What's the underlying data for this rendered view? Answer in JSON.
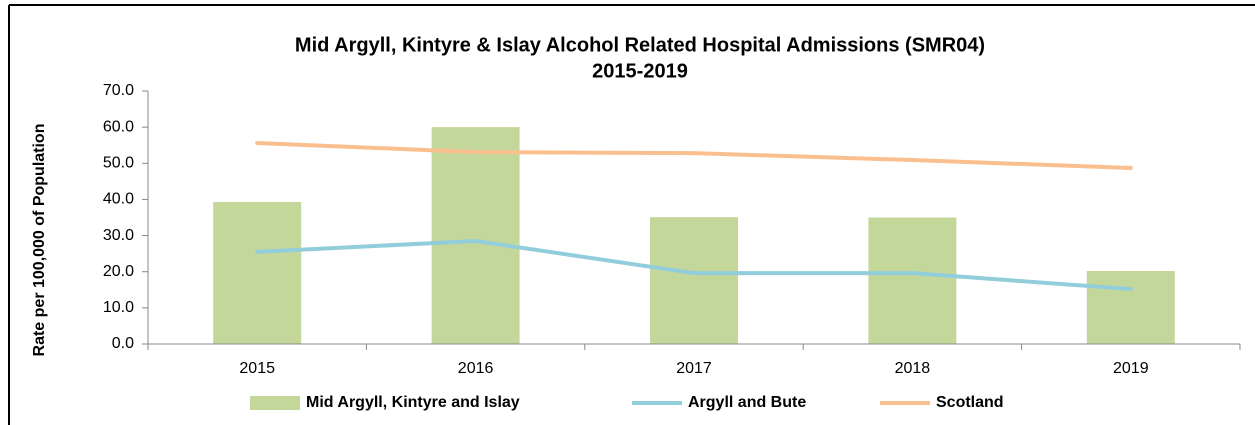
{
  "chart_data": {
    "type": "combo",
    "title": [
      "Mid Argyll, Kintyre & Islay Alcohol Related Hospital Admissions (SMR04)",
      "2015-2019"
    ],
    "y_label": "Rate per 100,000 of Population",
    "categories": [
      "2015",
      "2016",
      "2017",
      "2018",
      "2019"
    ],
    "series": [
      {
        "name": "Mid Argyll, Kintyre and Islay",
        "type": "bar",
        "color": "#c4d79b",
        "values": [
          39.3,
          60.0,
          35.1,
          35.0,
          20.2
        ]
      },
      {
        "name": "Argyll and Bute",
        "type": "line",
        "color": "#92cddc",
        "values": [
          25.5,
          28.5,
          19.6,
          19.6,
          15.2
        ]
      },
      {
        "name": "Scotland",
        "type": "line",
        "color": "#fabf8f",
        "values": [
          55.6,
          53.1,
          52.8,
          50.9,
          48.7
        ]
      }
    ],
    "ylim": [
      0,
      70
    ],
    "yticks": [
      {
        "value": 0,
        "label": "0.0"
      },
      {
        "value": 10,
        "label": "10.0"
      },
      {
        "value": 20,
        "label": "20.0"
      },
      {
        "value": 30,
        "label": "30.0"
      },
      {
        "value": 40,
        "label": "40.0"
      },
      {
        "value": 50,
        "label": "50.0"
      },
      {
        "value": 60,
        "label": "60.0"
      },
      {
        "value": 70,
        "label": "70.0"
      }
    ],
    "grid": false,
    "legend": "bottom"
  }
}
